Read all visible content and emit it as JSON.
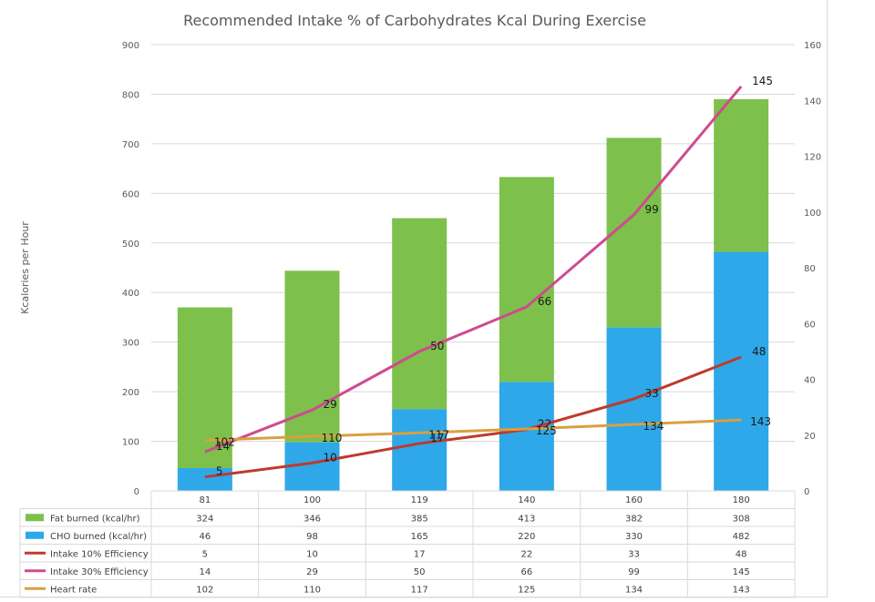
{
  "chart_data": {
    "type": "bar",
    "title": "Recommended Intake % of Carbohydrates Kcal During Exercise",
    "ylabel": "Kcalories per Hour",
    "ylim": [
      0,
      900
    ],
    "yticks": [
      "0",
      "100",
      "200",
      "300",
      "400",
      "500",
      "600",
      "700",
      "800",
      "900"
    ],
    "y2lim": [
      0,
      160
    ],
    "y2ticks": [
      "0",
      "20",
      "40",
      "60",
      "80",
      "100",
      "120",
      "140",
      "160"
    ],
    "categories": [
      "81",
      "100",
      "119",
      "140",
      "160",
      "180"
    ],
    "stacked_series": [
      {
        "name": "CHO burned (kcal/hr)",
        "color": "#2ea8e8",
        "values": [
          46,
          98,
          165,
          220,
          330,
          482
        ]
      },
      {
        "name": "Fat burned (kcal/hr)",
        "color": "#7dc04b",
        "values": [
          324,
          346,
          385,
          413,
          382,
          308
        ]
      }
    ],
    "line_series": [
      {
        "name": "Intake 10% Efficiency",
        "color": "#c0392b",
        "axis": "y2",
        "values": [
          5,
          10,
          17,
          22,
          33,
          48
        ],
        "labels": [
          "5",
          "10",
          "17",
          "22",
          "33",
          "48"
        ]
      },
      {
        "name": "Intake 30% Efficiency",
        "color": "#d04a8f",
        "axis": "y2",
        "values": [
          14,
          29,
          50,
          66,
          99,
          145
        ],
        "labels": [
          "14",
          "29",
          "50",
          "66",
          "99",
          "145"
        ]
      },
      {
        "name": "Heart rate",
        "color": "#d9a040",
        "axis": "y",
        "values": [
          102,
          110,
          117,
          125,
          134,
          143
        ],
        "labels": [
          "102",
          "110",
          "117",
          "125",
          "134",
          "143"
        ]
      }
    ],
    "table": {
      "header": [
        "81",
        "100",
        "119",
        "140",
        "160",
        "180"
      ],
      "rows": [
        {
          "name": "Fat burned (kcal/hr)",
          "color": "#7dc04b",
          "marker": "box",
          "cells": [
            "324",
            "346",
            "385",
            "413",
            "382",
            "308"
          ]
        },
        {
          "name": "CHO burned (kcal/hr)",
          "color": "#2ea8e8",
          "marker": "box",
          "cells": [
            "46",
            "98",
            "165",
            "220",
            "330",
            "482"
          ]
        },
        {
          "name": "Intake 10% Efficiency",
          "color": "#c0392b",
          "marker": "line",
          "cells": [
            "5",
            "10",
            "17",
            "22",
            "33",
            "48"
          ]
        },
        {
          "name": "Intake 30% Efficiency",
          "color": "#d04a8f",
          "marker": "line",
          "cells": [
            "14",
            "29",
            "50",
            "66",
            "99",
            "145"
          ]
        },
        {
          "name": "Heart rate",
          "color": "#d9a040",
          "marker": "line",
          "cells": [
            "102",
            "110",
            "117",
            "125",
            "134",
            "143"
          ]
        }
      ]
    }
  }
}
